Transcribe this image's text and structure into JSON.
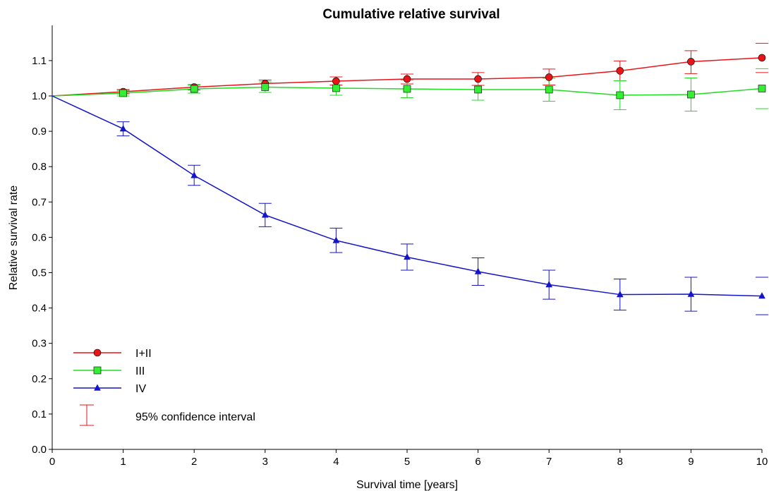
{
  "chart_data": {
    "type": "line",
    "title": "Cumulative relative survival",
    "xlabel": "Survival time [years]",
    "ylabel": "Relative survival rate",
    "x": [
      0,
      1,
      2,
      3,
      4,
      5,
      6,
      7,
      8,
      9,
      10
    ],
    "xlim": [
      0,
      10
    ],
    "ylim": [
      0,
      1.2
    ],
    "x_ticks": [
      "0",
      "1",
      "2",
      "3",
      "4",
      "5",
      "6",
      "7",
      "8",
      "9",
      "10"
    ],
    "y_ticks": [
      "0.0",
      "0.1",
      "0.2",
      "0.3",
      "0.4",
      "0.5",
      "0.6",
      "0.7",
      "0.8",
      "0.9",
      "1.0",
      "1.1"
    ],
    "grid": false,
    "legend_position": "bottom-left",
    "series": [
      {
        "name": "I+II",
        "color": "#e8141a",
        "marker": "circle",
        "marker_fill": "#e8141a",
        "values": [
          1.0,
          1.012,
          1.025,
          1.035,
          1.042,
          1.048,
          1.048,
          1.053,
          1.071,
          1.097,
          1.108
        ],
        "ci_low": [
          null,
          1.006,
          1.017,
          1.025,
          1.031,
          1.034,
          1.03,
          1.031,
          1.043,
          1.063,
          1.066
        ],
        "ci_high": [
          null,
          1.018,
          1.032,
          1.045,
          1.054,
          1.062,
          1.066,
          1.076,
          1.099,
          1.128,
          1.149
        ]
      },
      {
        "name": "III",
        "color": "#22dd22",
        "marker": "square",
        "marker_fill": "#33ee33",
        "values": [
          1.0,
          1.008,
          1.02,
          1.025,
          1.022,
          1.02,
          1.018,
          1.018,
          1.002,
          1.004,
          1.021
        ],
        "ci_low": [
          null,
          1.0,
          1.008,
          1.01,
          1.002,
          0.995,
          0.988,
          0.985,
          0.961,
          0.957,
          0.964
        ],
        "ci_high": [
          null,
          1.016,
          1.031,
          1.04,
          1.042,
          1.045,
          1.048,
          1.05,
          1.043,
          1.051,
          1.077
        ]
      },
      {
        "name": "IV",
        "color": "#1414c8",
        "marker": "triangle",
        "marker_fill": "#1414c8",
        "values": [
          1.0,
          0.907,
          0.775,
          0.663,
          0.591,
          0.544,
          0.503,
          0.466,
          0.438,
          0.439,
          0.434
        ],
        "ci_low": [
          null,
          0.887,
          0.747,
          0.63,
          0.557,
          0.507,
          0.464,
          0.425,
          0.394,
          0.391,
          0.381
        ],
        "ci_high": [
          null,
          0.927,
          0.804,
          0.696,
          0.626,
          0.581,
          0.542,
          0.507,
          0.482,
          0.487,
          0.487
        ]
      }
    ],
    "ci_legend_label": "95% confidence interval",
    "ci_legend_color": "#e8141a"
  }
}
